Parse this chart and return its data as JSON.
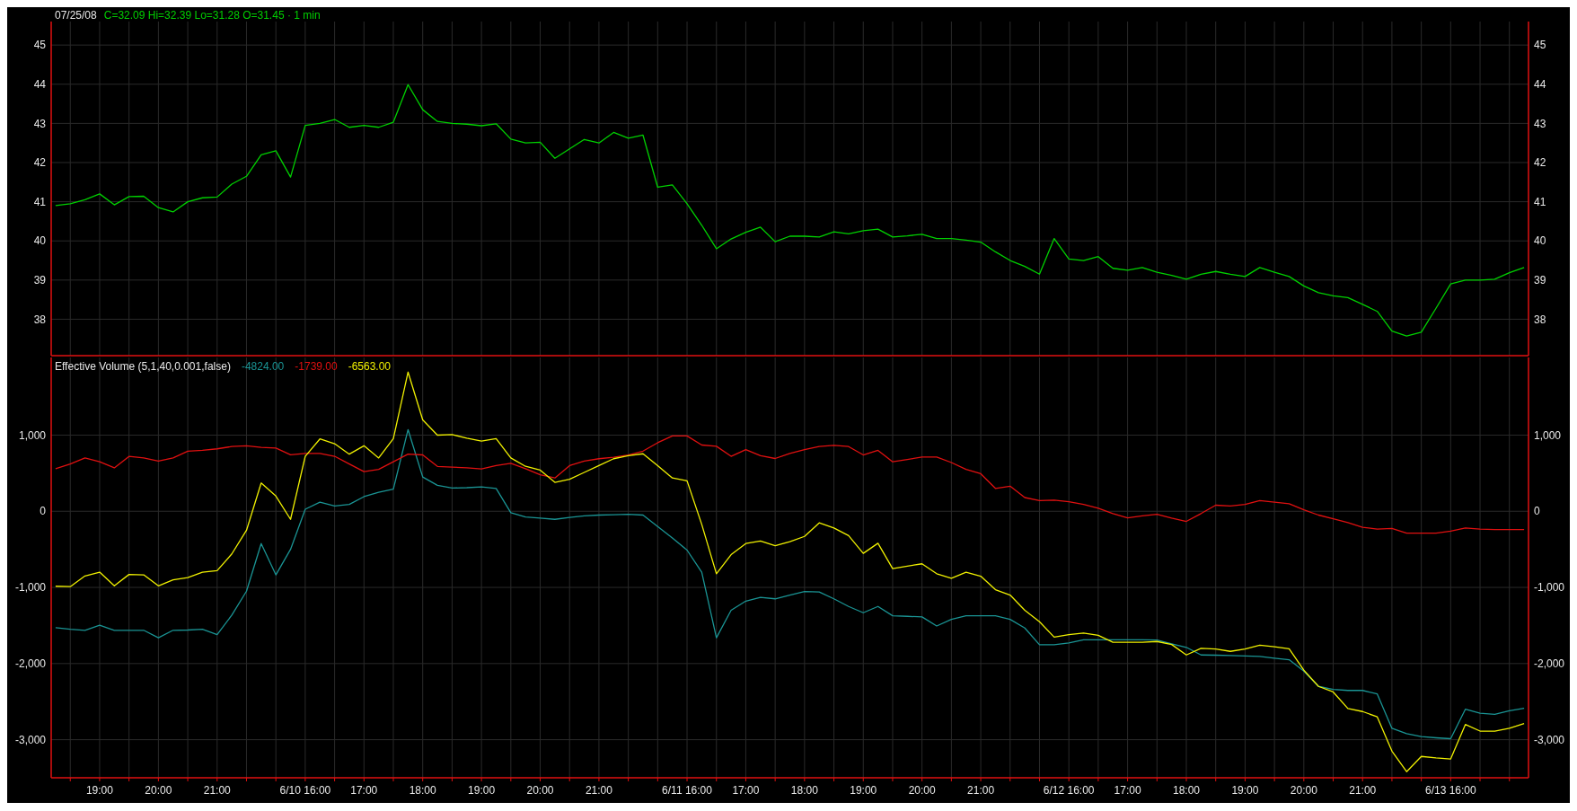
{
  "chart_data": [
    {
      "type": "line",
      "title": "07/25/08",
      "subtitle": "C=32.09  Hi=32.39  Lo=31.28  O=31.45  · 1 min",
      "ylim": [
        37.07,
        45.6
      ],
      "y2lim": [
        37.07,
        45.6
      ],
      "categories": [
        null,
        null,
        null,
        null,
        null,
        null,
        null,
        null,
        null,
        null,
        null,
        null,
        null,
        null,
        null,
        null,
        null,
        null,
        null,
        null,
        null,
        null,
        null,
        null,
        null,
        null,
        null,
        null,
        null,
        null,
        null,
        null,
        null,
        null,
        null,
        null,
        null,
        null,
        null,
        null,
        null,
        null,
        null,
        null,
        null,
        null,
        null,
        null,
        null,
        null,
        null,
        null,
        null,
        null,
        null,
        null,
        null,
        null,
        null,
        null,
        null,
        null,
        null,
        null,
        null,
        null,
        null,
        null,
        null,
        null,
        null,
        null,
        null,
        null,
        null,
        null,
        null,
        null,
        null,
        null,
        null,
        null,
        null,
        null,
        null,
        null,
        null,
        null,
        null,
        null,
        null,
        null,
        null,
        null,
        null,
        null,
        null,
        null,
        null,
        null,
        null
      ],
      "yticks": [
        38,
        39,
        40,
        41,
        42,
        43,
        44,
        45
      ],
      "y2ticks": [
        38,
        39,
        40,
        41,
        42,
        43,
        44,
        45
      ],
      "tick_labels": "y",
      "grid": true,
      "series": [
        {
          "color": "#00d000",
          "values": [
            40.9,
            40.95,
            41.05,
            41.2,
            40.92,
            41.13,
            41.14,
            40.85,
            40.74,
            41.0,
            41.1,
            41.12,
            41.45,
            41.65,
            42.2,
            42.3,
            41.63,
            42.95,
            43.0,
            43.1,
            42.9,
            42.95,
            42.9,
            43.03,
            43.99,
            43.35,
            43.05,
            43.0,
            42.98,
            42.94,
            42.99,
            42.6,
            42.5,
            42.52,
            42.11,
            42.35,
            42.59,
            42.5,
            42.77,
            42.62,
            42.7,
            41.37,
            41.43,
            40.95,
            40.4,
            39.8,
            40.05,
            40.22,
            40.35,
            39.98,
            40.12,
            40.12,
            40.1,
            40.23,
            40.18,
            40.26,
            40.3,
            40.1,
            40.13,
            40.17,
            40.06,
            40.06,
            40.02,
            39.97,
            39.72,
            39.5,
            39.35,
            39.15,
            40.06,
            39.54,
            39.5,
            39.6,
            39.3,
            39.25,
            39.32,
            39.2,
            39.12,
            39.02,
            39.15,
            39.22,
            39.15,
            39.09,
            39.32,
            39.2,
            39.09,
            38.85,
            38.68,
            38.6,
            38.55,
            38.38,
            38.2,
            37.7,
            37.57,
            37.67,
            38.28,
            38.9,
            39.0,
            39.0,
            39.02,
            39.19,
            39.32
          ]
        }
      ]
    },
    {
      "type": "line",
      "title": "Effective Volume (5,1,40,0.001,false)",
      "legend": "top left",
      "ylim": [
        -3500,
        2020
      ],
      "y2lim": [
        -3500,
        2020
      ],
      "categories": [
        null,
        null,
        null,
        "19:00",
        null,
        null,
        null,
        "20:00",
        null,
        null,
        null,
        "21:00",
        null,
        null,
        null,
        null,
        null,
        "6/10 16:00",
        null,
        null,
        null,
        "17:00",
        null,
        null,
        null,
        "18:00",
        null,
        null,
        null,
        "19:00",
        null,
        null,
        null,
        "20:00",
        null,
        null,
        null,
        "21:00",
        null,
        null,
        null,
        null,
        null,
        "6/11 16:00",
        null,
        null,
        null,
        "17:00",
        null,
        null,
        null,
        "18:00",
        null,
        null,
        null,
        "19:00",
        null,
        null,
        null,
        "20:00",
        null,
        null,
        null,
        "21:00",
        null,
        null,
        null,
        null,
        null,
        "6/12 16:00",
        null,
        null,
        null,
        "17:00",
        null,
        null,
        null,
        "18:00",
        null,
        null,
        null,
        "19:00",
        null,
        null,
        null,
        "20:00",
        null,
        null,
        null,
        "21:00",
        null,
        null,
        null,
        null,
        null,
        "6/13 16:00",
        null,
        null,
        null,
        null,
        null
      ],
      "yticks": [
        {
          "value": -3000,
          "label": "-3,000"
        },
        {
          "value": -2000,
          "label": "-2,000"
        },
        {
          "value": -1000,
          "label": "-1,000"
        },
        0,
        {
          "value": 1000,
          "label": "1,000"
        }
      ],
      "y2ticks": [
        {
          "value": -3000,
          "label": "-3,000"
        },
        {
          "value": -2000,
          "label": "-2,000"
        },
        {
          "value": -1000,
          "label": "-1,000"
        },
        0,
        {
          "value": 1000,
          "label": "1,000"
        }
      ],
      "grid": true,
      "series": [
        {
          "name": "-4824.00",
          "color": "#1a9494",
          "values": [
            -1530,
            -1550,
            -1563,
            -1497,
            -1563,
            -1563,
            -1563,
            -1662,
            -1563,
            -1560,
            -1550,
            -1620,
            -1364,
            -1050,
            -424,
            -835,
            -500,
            27,
            120,
            70,
            90,
            192,
            250,
            290,
            1073,
            450,
            340,
            305,
            310,
            320,
            300,
            -20,
            -75,
            -90,
            -106,
            -80,
            -60,
            -50,
            -45,
            -40,
            -50,
            -200,
            -350,
            -510,
            -800,
            -1662,
            -1300,
            -1180,
            -1130,
            -1150,
            -1100,
            -1053,
            -1060,
            -1150,
            -1250,
            -1333,
            -1250,
            -1373,
            -1380,
            -1387,
            -1507,
            -1420,
            -1373,
            -1373,
            -1373,
            -1420,
            -1533,
            -1753,
            -1753,
            -1730,
            -1687,
            -1687,
            -1687,
            -1687,
            -1687,
            -1690,
            -1740,
            -1787,
            -1887,
            -1890,
            -1895,
            -1900,
            -1907,
            -1930,
            -1950,
            -2100,
            -2300,
            -2340,
            -2353,
            -2353,
            -2400,
            -2850,
            -2920,
            -2960,
            -2975,
            -2987,
            -2600,
            -2653,
            -2667,
            -2620,
            -2587
          ]
        },
        {
          "name": "-1739.00",
          "color": "#e01010",
          "values": [
            560,
            620,
            700,
            650,
            570,
            720,
            700,
            660,
            700,
            788,
            800,
            820,
            850,
            860,
            840,
            830,
            742,
            760,
            760,
            722,
            620,
            520,
            550,
            650,
            750,
            740,
            589,
            580,
            570,
            556,
            600,
            630,
            560,
            480,
            437,
            600,
            660,
            690,
            710,
            740,
            790,
            900,
            990,
            990,
            870,
            854,
            722,
            810,
            730,
            693,
            760,
            810,
            850,
            865,
            850,
            740,
            800,
            650,
            680,
            713,
            713,
            640,
            550,
            493,
            300,
            330,
            180,
            140,
            147,
            125,
            90,
            40,
            -30,
            -87,
            -60,
            -40,
            -90,
            -133,
            -30,
            80,
            70,
            90,
            140,
            120,
            100,
            20,
            -50,
            -100,
            -150,
            -210,
            -235,
            -225,
            -287,
            -287,
            -287,
            -260,
            -220,
            -235,
            -240,
            -240,
            -240
          ]
        },
        {
          "name": "-6563.00",
          "color": "#f0f000",
          "values": [
            -985,
            -990,
            -850,
            -800,
            -980,
            -830,
            -835,
            -980,
            -900,
            -870,
            -800,
            -780,
            -560,
            -250,
            371,
            200,
            -106,
            722,
            950,
            887,
            750,
            860,
            700,
            954,
            1828,
            1200,
            1000,
            1007,
            960,
            921,
            954,
            700,
            590,
            540,
            380,
            420,
            510,
            600,
            690,
            730,
            755,
            600,
            437,
            400,
            -172,
            -821,
            -570,
            -424,
            -390,
            -453,
            -400,
            -330,
            -153,
            -220,
            -320,
            -553,
            -420,
            -753,
            -720,
            -690,
            -820,
            -880,
            -800,
            -853,
            -1030,
            -1100,
            -1300,
            -1450,
            -1653,
            -1620,
            -1600,
            -1630,
            -1720,
            -1720,
            -1720,
            -1710,
            -1750,
            -1887,
            -1800,
            -1810,
            -1840,
            -1810,
            -1760,
            -1780,
            -1807,
            -2087,
            -2300,
            -2373,
            -2590,
            -2630,
            -2700,
            -3150,
            -3420,
            -3220,
            -3240,
            -3253,
            -2800,
            -2887,
            -2887,
            -2850,
            -2787
          ]
        }
      ]
    }
  ]
}
